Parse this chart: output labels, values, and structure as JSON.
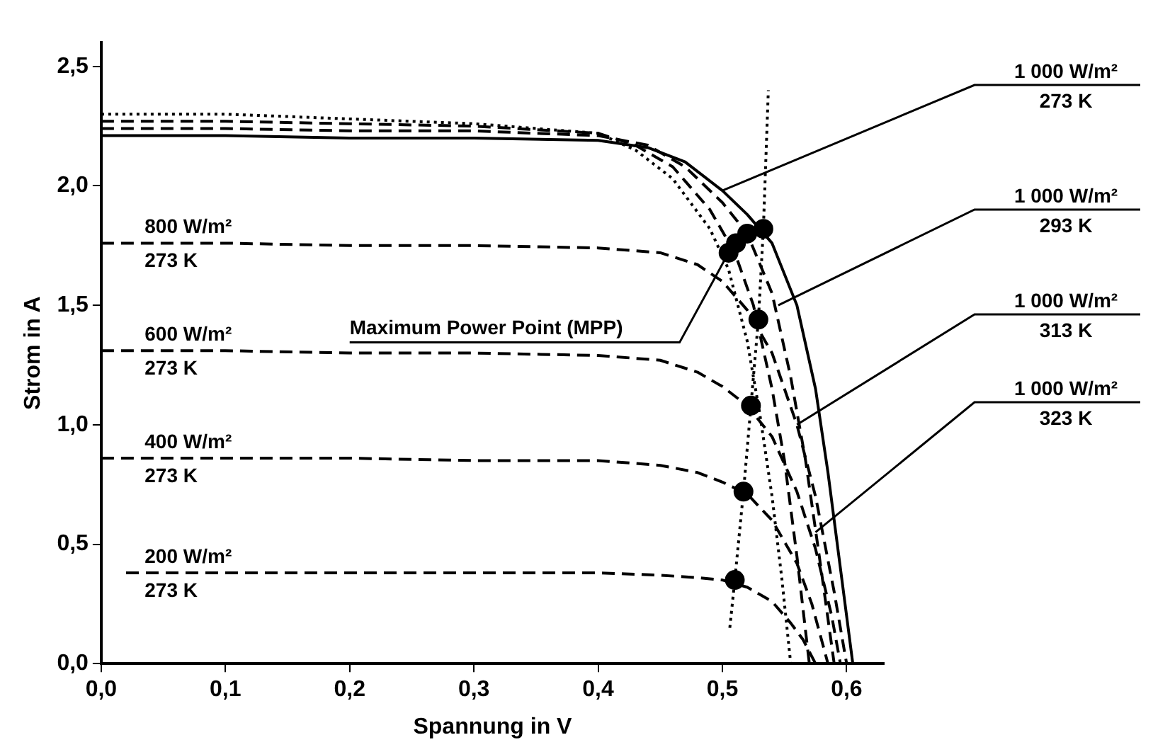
{
  "chart_data": {
    "type": "line",
    "xlabel": "Spannung in V",
    "ylabel": "Strom in A",
    "xlim": [
      0,
      0.63
    ],
    "ylim": [
      0,
      2.6
    ],
    "xticks": [
      {
        "value": 0,
        "label": "0,0"
      },
      {
        "value": 0.1,
        "label": "0,1"
      },
      {
        "value": 0.2,
        "label": "0,2"
      },
      {
        "value": 0.3,
        "label": "0,3"
      },
      {
        "value": 0.4,
        "label": "0,4"
      },
      {
        "value": 0.5,
        "label": "0,5"
      },
      {
        "value": 0.6,
        "label": "0,6"
      }
    ],
    "yticks": [
      {
        "value": 0,
        "label": "0,0"
      },
      {
        "value": 0.5,
        "label": "0,5"
      },
      {
        "value": 1,
        "label": "1,0"
      },
      {
        "value": 1.5,
        "label": "1,5"
      },
      {
        "value": 2,
        "label": "2,0"
      },
      {
        "value": 2.5,
        "label": "2,5"
      }
    ],
    "grid": false,
    "legend": false,
    "marker": "none",
    "series": [
      {
        "color": "#000000",
        "line_style": "solid",
        "x": [
          0,
          0.1,
          0.2,
          0.3,
          0.4,
          0.44,
          0.47,
          0.5,
          0.52,
          0.54,
          0.56,
          0.575,
          0.585,
          0.595,
          0.605
        ],
        "values": [
          2.21,
          2.21,
          2.2,
          2.2,
          2.19,
          2.16,
          2.1,
          1.98,
          1.88,
          1.76,
          1.5,
          1.15,
          0.8,
          0.4,
          0
        ]
      },
      {
        "color": "#000000",
        "line_style": "dashed",
        "x": [
          0,
          0.1,
          0.2,
          0.3,
          0.4,
          0.44,
          0.47,
          0.5,
          0.52,
          0.54,
          0.555,
          0.567,
          0.578,
          0.59
        ],
        "values": [
          2.24,
          2.24,
          2.23,
          2.23,
          2.21,
          2.17,
          2.08,
          1.93,
          1.8,
          1.55,
          1.2,
          0.85,
          0.45,
          0
        ]
      },
      {
        "color": "#000000",
        "line_style": "dashed",
        "x": [
          0,
          0.1,
          0.2,
          0.3,
          0.4,
          0.43,
          0.46,
          0.49,
          0.51,
          0.525,
          0.54,
          0.55,
          0.56,
          0.57
        ],
        "values": [
          2.27,
          2.27,
          2.26,
          2.25,
          2.22,
          2.17,
          2.08,
          1.9,
          1.72,
          1.5,
          1.15,
          0.85,
          0.45,
          0
        ]
      },
      {
        "color": "#000000",
        "line_style": "dotted",
        "x": [
          0,
          0.1,
          0.2,
          0.3,
          0.4,
          0.43,
          0.46,
          0.49,
          0.505,
          0.52,
          0.53,
          0.54,
          0.548,
          0.555
        ],
        "values": [
          2.3,
          2.3,
          2.28,
          2.26,
          2.22,
          2.15,
          2.03,
          1.82,
          1.65,
          1.35,
          1.05,
          0.7,
          0.35,
          0
        ]
      },
      {
        "color": "#000000",
        "line_style": "dashed",
        "x": [
          0,
          0.1,
          0.2,
          0.3,
          0.4,
          0.45,
          0.48,
          0.5,
          0.52,
          0.54,
          0.56,
          0.575,
          0.59,
          0.6
        ],
        "values": [
          1.76,
          1.76,
          1.75,
          1.75,
          1.74,
          1.72,
          1.67,
          1.6,
          1.48,
          1.3,
          1.0,
          0.7,
          0.3,
          0
        ]
      },
      {
        "color": "#000000",
        "line_style": "dashed",
        "x": [
          0,
          0.1,
          0.2,
          0.3,
          0.4,
          0.45,
          0.48,
          0.5,
          0.52,
          0.54,
          0.56,
          0.575,
          0.588,
          0.595
        ],
        "values": [
          1.31,
          1.31,
          1.3,
          1.3,
          1.29,
          1.27,
          1.22,
          1.16,
          1.08,
          0.95,
          0.72,
          0.48,
          0.2,
          0
        ]
      },
      {
        "color": "#000000",
        "line_style": "dashed",
        "x": [
          0,
          0.1,
          0.2,
          0.3,
          0.4,
          0.45,
          0.48,
          0.5,
          0.52,
          0.54,
          0.56,
          0.572,
          0.585
        ],
        "values": [
          0.86,
          0.86,
          0.86,
          0.85,
          0.85,
          0.83,
          0.8,
          0.76,
          0.71,
          0.6,
          0.42,
          0.25,
          0
        ]
      },
      {
        "color": "#000000",
        "line_style": "dashed",
        "x": [
          0.02,
          0.1,
          0.2,
          0.3,
          0.4,
          0.45,
          0.48,
          0.5,
          0.52,
          0.54,
          0.555,
          0.565,
          0.575
        ],
        "values": [
          0.38,
          0.38,
          0.38,
          0.38,
          0.38,
          0.37,
          0.36,
          0.35,
          0.32,
          0.26,
          0.17,
          0.1,
          0
        ]
      },
      {
        "color": "#000000",
        "line_style": "dotted",
        "x": [
          0.506,
          0.51,
          0.517,
          0.523,
          0.529,
          0.533,
          0.537
        ],
        "values": [
          0.15,
          0.35,
          0.72,
          1.08,
          1.44,
          1.82,
          2.4
        ]
      },
      {
        "type": "scatter",
        "marker": "circle",
        "color": "#000000",
        "x": [
          0.51,
          0.517,
          0.523,
          0.529,
          0.505,
          0.511,
          0.52,
          0.533
        ],
        "values": [
          0.35,
          0.72,
          1.08,
          1.44,
          1.72,
          1.76,
          1.8,
          1.82
        ]
      }
    ],
    "annotations": [
      {
        "text": "800 W/m²\n273 K",
        "x": 0.1,
        "y": 1.76
      },
      {
        "text": "600 W/m²\n273 K",
        "x": 0.1,
        "y": 1.31
      },
      {
        "text": "400 W/m²\n273 K",
        "x": 0.1,
        "y": 0.86
      },
      {
        "text": "200 W/m²\n273 K",
        "x": 0.1,
        "y": 0.38
      },
      {
        "text": "1 000 W/m²\n273 K",
        "x": 0.5,
        "y": 1.98
      },
      {
        "text": "1 000 W/m²\n293 K",
        "x": 0.545,
        "y": 1.5
      },
      {
        "text": "1 000 W/m²\n313 K",
        "x": 0.56,
        "y": 1.0
      },
      {
        "text": "1 000 W/m²\n323 K",
        "x": 0.575,
        "y": 0.55
      },
      {
        "text": "Maximum Power Point (MPP)",
        "x": 0.505,
        "y": 1.72
      }
    ]
  }
}
